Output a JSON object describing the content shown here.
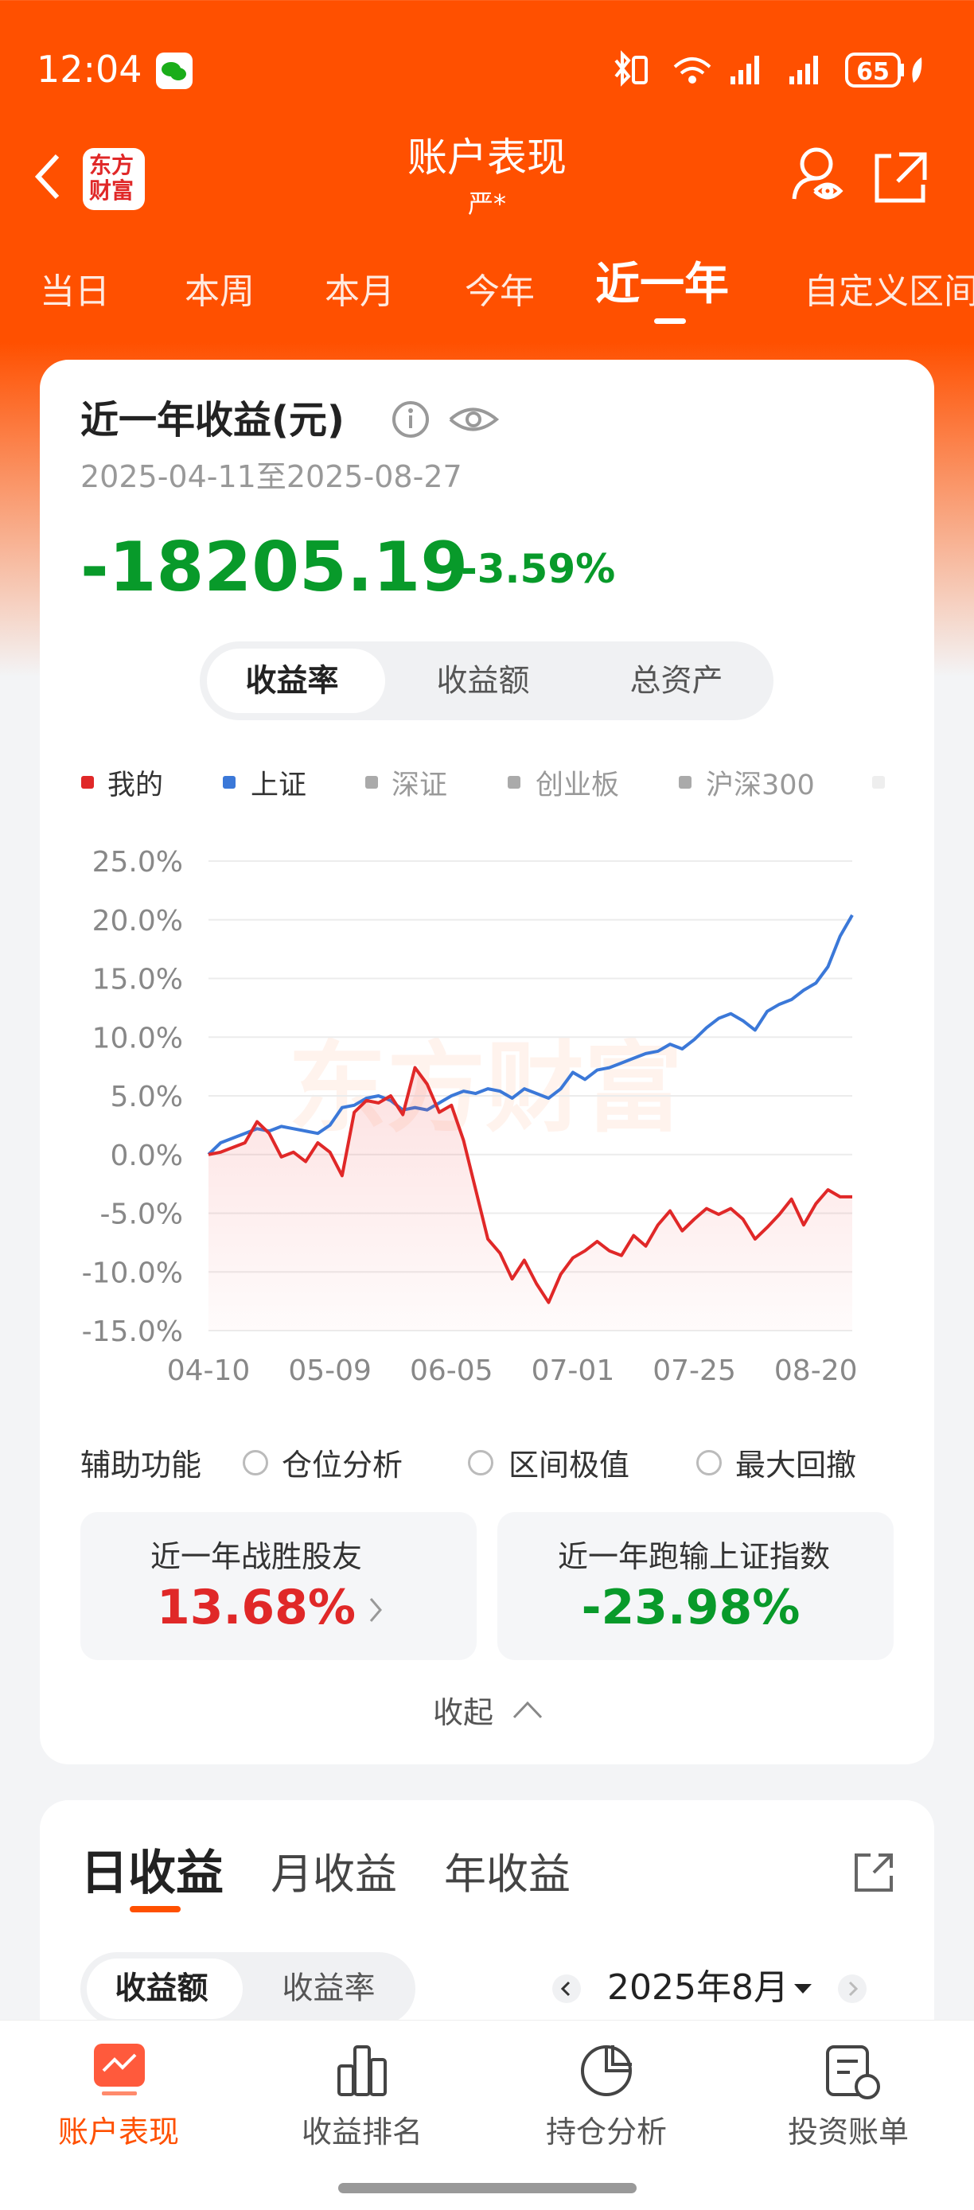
{
  "status_bar": {
    "time": "12:04",
    "battery": "65"
  },
  "header": {
    "logo_lines": [
      "东方",
      "财富"
    ],
    "title": "账户表现",
    "subtitle": "严*"
  },
  "tabs": [
    "当日",
    "本周",
    "本月",
    "今年",
    "近一年",
    "自定义区间"
  ],
  "summary": {
    "title": "近一年收益(元)",
    "date_range": "2025-04-11至2025-08-27",
    "amount": "-18205.19",
    "rate": "-3.59%"
  },
  "metric_toggle": [
    "收益率",
    "收益额",
    "总资产"
  ],
  "chart_data": {
    "type": "line",
    "watermark": "东方财富",
    "grid": true,
    "legend_inactive": [
      "深证",
      "创业板",
      "沪深300"
    ],
    "x": [
      0,
      2,
      4,
      6,
      8,
      10,
      12,
      14,
      16,
      18,
      20,
      22,
      24,
      26,
      28,
      30,
      32,
      34,
      36,
      38,
      40,
      42,
      44,
      46,
      48,
      50,
      52,
      54,
      56,
      58,
      60,
      62,
      64,
      66,
      68,
      70,
      72,
      74,
      76,
      78,
      80,
      82,
      84,
      86,
      88,
      90,
      92,
      94,
      96,
      98,
      100,
      102,
      104,
      106
    ],
    "xlim": [
      0,
      106
    ],
    "xticks": [
      {
        "value": 0,
        "label": "04-10"
      },
      {
        "value": 20,
        "label": "05-09"
      },
      {
        "value": 40,
        "label": "06-05"
      },
      {
        "value": 60,
        "label": "07-01"
      },
      {
        "value": 80,
        "label": "07-25"
      },
      {
        "value": 100,
        "label": "08-20"
      }
    ],
    "ylim": [
      -15,
      25
    ],
    "yticks": [
      {
        "value": 25,
        "label": "25.0%"
      },
      {
        "value": 20,
        "label": "20.0%"
      },
      {
        "value": 15,
        "label": "15.0%"
      },
      {
        "value": 10,
        "label": "10.0%"
      },
      {
        "value": 5,
        "label": "5.0%"
      },
      {
        "value": 0,
        "label": "0.0%"
      },
      {
        "value": -5,
        "label": "-5.0%"
      },
      {
        "value": -10,
        "label": "-10.0%"
      },
      {
        "value": -15,
        "label": "-15.0%"
      }
    ],
    "series": [
      {
        "name": "我的",
        "color": "#e02828",
        "values": [
          0,
          0.2,
          0.6,
          1,
          2.8,
          1.8,
          -0.2,
          0.2,
          -0.6,
          1,
          0.2,
          -1.8,
          3.6,
          4.6,
          4.4,
          5,
          3.4,
          7.4,
          6,
          3.6,
          4.2,
          1.2,
          -3,
          -7.2,
          -8.4,
          -10.6,
          -9,
          -11,
          -12.6,
          -10.2,
          -8.8,
          -8.2,
          -7.4,
          -8.2,
          -8.6,
          -6.9,
          -7.8,
          -6,
          -4.8,
          -6.5,
          -5.5,
          -4.6,
          -5.1,
          -4.6,
          -5.5,
          -7.2,
          -6.2,
          -5.1,
          -3.8,
          -6,
          -4.2,
          -3,
          -3.6,
          -3.6
        ]
      },
      {
        "name": "上证",
        "color": "#3b78d8",
        "values": [
          0,
          1,
          1.4,
          1.8,
          2.2,
          2,
          2.4,
          2.2,
          2,
          1.8,
          2.5,
          4,
          4.2,
          4.8,
          5,
          4.6,
          3.8,
          4,
          3.8,
          4.4,
          5,
          5.4,
          5.2,
          5.6,
          5.4,
          4.8,
          5.6,
          5.2,
          4.8,
          5.6,
          7,
          6.4,
          7.2,
          7.4,
          7.8,
          8.2,
          8.6,
          8.8,
          9.4,
          9,
          9.8,
          10.8,
          11.6,
          12,
          11.4,
          10.6,
          12.2,
          12.8,
          13.2,
          14,
          14.6,
          16,
          18.6,
          20.4
        ]
      }
    ]
  },
  "aux": {
    "label": "辅助功能",
    "options": [
      "仓位分析",
      "区间极值",
      "最大回撤"
    ]
  },
  "stats": [
    {
      "label": "近一年战胜股友",
      "value": "13.68%"
    },
    {
      "label": "近一年跑输上证指数",
      "value": "-23.98%"
    }
  ],
  "collapse": "收起",
  "daily": {
    "tabs": [
      "日收益",
      "月收益",
      "年收益"
    ],
    "toggle": [
      "收益额",
      "收益率"
    ],
    "month": "2025年8月"
  },
  "nav": [
    "账户表现",
    "收益排名",
    "持仓分析",
    "投资账单"
  ]
}
